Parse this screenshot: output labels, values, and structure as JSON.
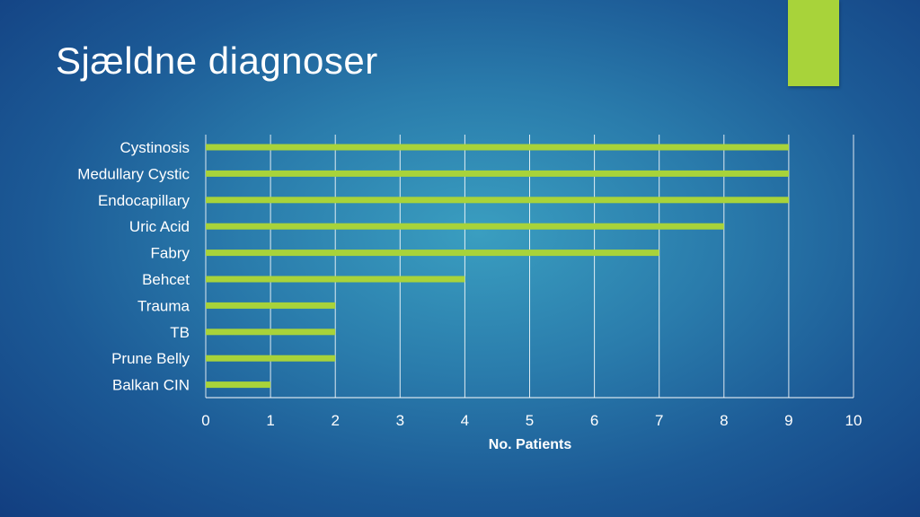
{
  "slide": {
    "title": "Sjældne diagnoser",
    "accent_color": "#a8d33a"
  },
  "chart_data": {
    "type": "bar",
    "orientation": "horizontal",
    "categories": [
      "Cystinosis",
      "Medullary Cystic",
      "Endocapillary",
      "Uric Acid",
      "Fabry",
      "Behcet",
      "Trauma",
      "TB",
      "Prune Belly",
      "Balkan CIN"
    ],
    "values": [
      9,
      9,
      9,
      8,
      7,
      4,
      2,
      2,
      2,
      1
    ],
    "xlabel": "No. Patients",
    "ylabel": "",
    "xlim": [
      0,
      10
    ],
    "xticks": [
      0,
      1,
      2,
      3,
      4,
      5,
      6,
      7,
      8,
      9,
      10
    ],
    "grid": true,
    "bar_color": "#a8d33a",
    "grid_color": "#ffffff"
  }
}
